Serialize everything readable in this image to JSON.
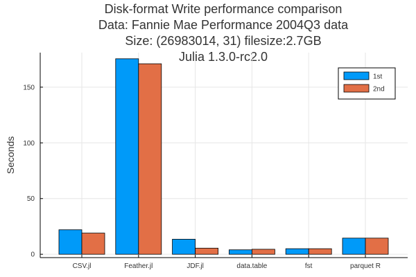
{
  "chart_data": {
    "type": "bar",
    "title_lines": [
      "Disk-format Write performance comparison",
      "Data: Fannie Mae Performance 2004Q3 data",
      "Size: (26983014, 31) filesize:2.7GB",
      "Julia 1.3.0-rc2.0"
    ],
    "xlabel": "",
    "ylabel": "Seconds",
    "categories": [
      "CSV.jl",
      "Feather.jl",
      "JDF.jl",
      "data.table",
      "fst",
      "parquet R"
    ],
    "series": [
      {
        "name": "1st",
        "color": "#009AF9",
        "values": [
          22,
          175.5,
          13.5,
          4,
          5,
          14.5
        ]
      },
      {
        "name": "2nd",
        "color": "#E26F46",
        "values": [
          19,
          171,
          5.5,
          4.5,
          5,
          14.5
        ]
      }
    ],
    "ylim": [
      -3,
      181
    ],
    "yticks": [
      0,
      50,
      100,
      150
    ],
    "grid": true,
    "legend_position": "top-right"
  }
}
